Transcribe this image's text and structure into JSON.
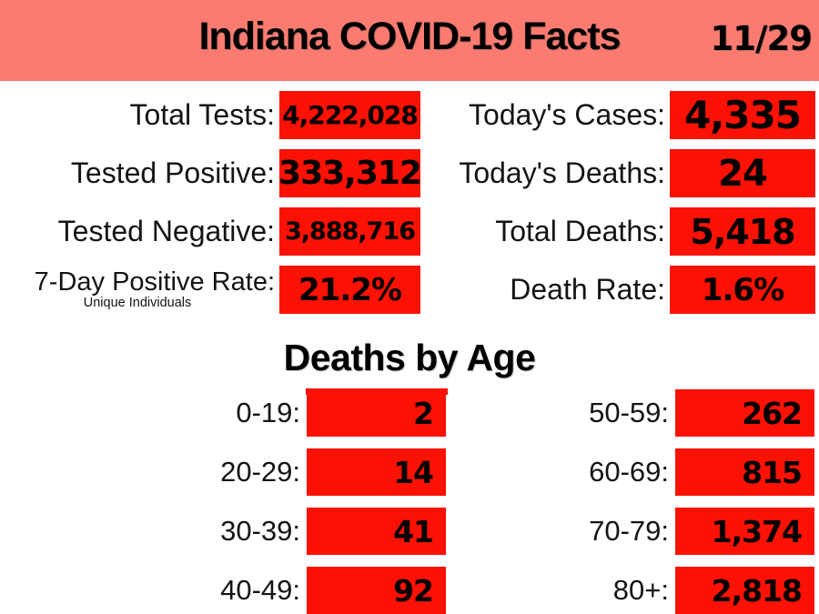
{
  "banner": {
    "title": "Indiana COVID-19 Facts",
    "date": "11/29"
  },
  "stats": {
    "left": [
      {
        "label": "Total Tests:",
        "value": "4,222,028"
      },
      {
        "label": "Tested Positive:",
        "value": "333,312"
      },
      {
        "label": "Tested Negative:",
        "value": "3,888,716"
      },
      {
        "label": "7-Day Positive Rate:",
        "sublabel": "Unique Individuals",
        "value": "21.2%"
      }
    ],
    "right": [
      {
        "label": "Today's Cases:",
        "value": "4,335"
      },
      {
        "label": "Today's Deaths:",
        "value": "24"
      },
      {
        "label": "Total Deaths:",
        "value": "5,418"
      },
      {
        "label": "Death Rate:",
        "value": "1.6%"
      }
    ]
  },
  "deaths_by_age": {
    "title": "Deaths by Age",
    "left": [
      {
        "label": "0-19:",
        "value": "2"
      },
      {
        "label": "20-29:",
        "value": "14"
      },
      {
        "label": "30-39:",
        "value": "41"
      },
      {
        "label": "40-49:",
        "value": "92"
      }
    ],
    "right": [
      {
        "label": "50-59:",
        "value": "262"
      },
      {
        "label": "60-69:",
        "value": "815"
      },
      {
        "label": "70-79:",
        "value": "1,374"
      },
      {
        "label": "80+:",
        "value": "2,818"
      }
    ]
  },
  "colors": {
    "banner_bg": "#fc7b71",
    "box_red": "#fb1205",
    "text": "#000000",
    "background": "#ffffff"
  },
  "chart_data": {
    "type": "table",
    "title": "Indiana COVID-19 Facts",
    "date": "11/29",
    "stats": [
      {
        "label": "Total Tests",
        "value": 4222028
      },
      {
        "label": "Tested Positive",
        "value": 333312
      },
      {
        "label": "Tested Negative",
        "value": 3888716
      },
      {
        "label": "7-Day Positive Rate (Unique Individuals)",
        "value": "21.2%"
      },
      {
        "label": "Today's Cases",
        "value": 4335
      },
      {
        "label": "Today's Deaths",
        "value": 24
      },
      {
        "label": "Total Deaths",
        "value": 5418
      },
      {
        "label": "Death Rate",
        "value": "1.6%"
      }
    ],
    "deaths_by_age": {
      "categories": [
        "0-19",
        "20-29",
        "30-39",
        "40-49",
        "50-59",
        "60-69",
        "70-79",
        "80+"
      ],
      "values": [
        2,
        14,
        41,
        92,
        262,
        815,
        1374,
        2818
      ]
    }
  }
}
